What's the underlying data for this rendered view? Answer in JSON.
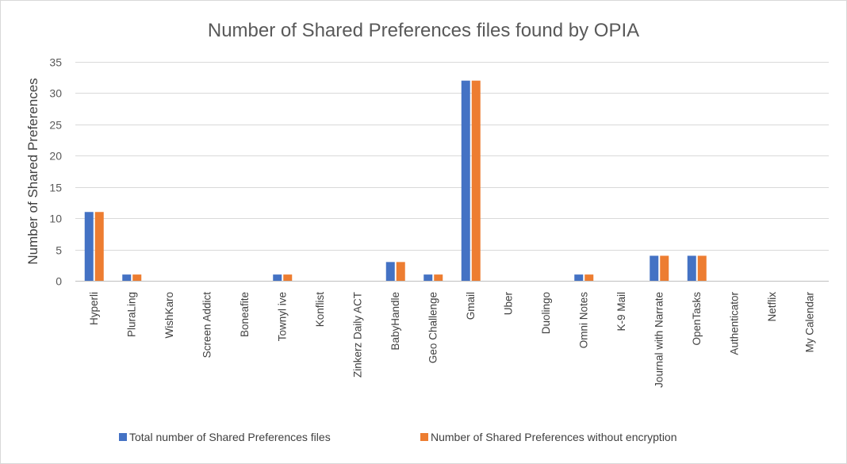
{
  "chart_data": {
    "type": "bar",
    "title": "Number of Shared Preferences files found by OPIA",
    "xlabel": "",
    "ylabel": "Number of Shared Preferences",
    "ylim": [
      0,
      35
    ],
    "yticks": [
      0,
      5,
      10,
      15,
      20,
      25,
      30,
      35
    ],
    "grid": true,
    "legend_position": "bottom",
    "categories": [
      "Hyperli",
      "PluraLing",
      "WishKaro",
      "Screen Addict",
      "Boneafite",
      "Townylive",
      "Konflist",
      "Zinkerz Daily ACT",
      "BabyHandle",
      "Geo Challenge",
      "Gmail",
      "Uber",
      "Duolingo",
      "Omni Notes",
      "K-9 Mail",
      "Journal with Narrate",
      "OpenTasks",
      "Authenticator",
      "Netflix",
      "My Calendar"
    ],
    "series": [
      {
        "name": "Total number of Shared Preferences files",
        "color": "#4472c4",
        "values": [
          11,
          1,
          0,
          0,
          0,
          1,
          0,
          0,
          3,
          1,
          32,
          0,
          0,
          1,
          0,
          4,
          4,
          0,
          0,
          0
        ]
      },
      {
        "name": "Number of Shared Preferences without encryption",
        "color": "#ed7d31",
        "values": [
          11,
          1,
          0,
          0,
          0,
          1,
          0,
          0,
          3,
          1,
          32,
          0,
          0,
          1,
          0,
          4,
          4,
          0,
          0,
          0
        ]
      }
    ],
    "category_label_display": [
      "Hyperli",
      "PluraLing",
      "WishKaro",
      "Screen Addict",
      "Boneafite",
      "Townyl ive",
      "Konflist",
      "Zinkerz Daily ACT",
      "BabyHandle",
      "Geo Challenge",
      "Gmail",
      "Uber",
      "Duolingo",
      "Omni Notes",
      "K-9 Mail",
      "Journal with Narrate",
      "OpenTasks",
      "Authenticator",
      "Netflix",
      "My Calendar"
    ],
    "legend_display": [
      "Total number of Shared Preferences files",
      "Number of Shared Preferences without encryption"
    ],
    "gridline_color": "#d9d9d9",
    "axis_color": "#bfbfbf"
  }
}
